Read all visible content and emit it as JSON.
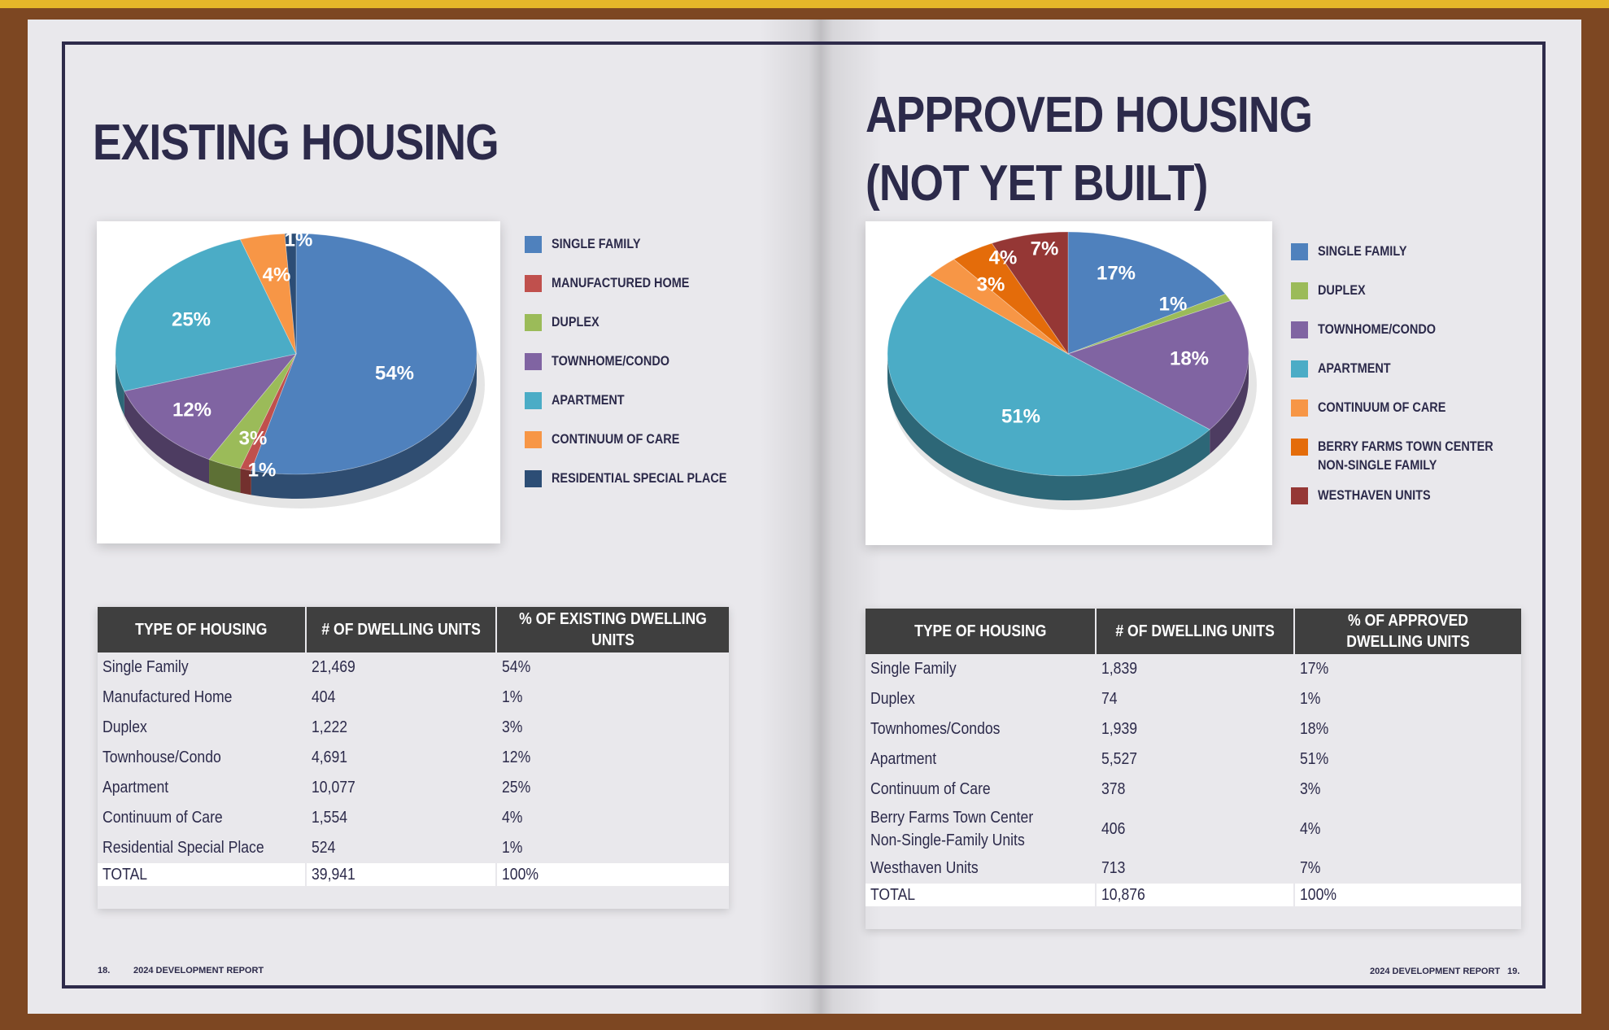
{
  "left": {
    "title": "EXISTING HOUSING",
    "legend": [
      {
        "label": "SINGLE FAMILY",
        "color": "#4f81bd"
      },
      {
        "label": "MANUFACTURED HOME",
        "color": "#c0504d"
      },
      {
        "label": "DUPLEX",
        "color": "#9bbb59"
      },
      {
        "label": "TOWNHOME/CONDO",
        "color": "#8064a2"
      },
      {
        "label": "APARTMENT",
        "color": "#4bacc6"
      },
      {
        "label": "CONTINUUM OF CARE",
        "color": "#f79646"
      },
      {
        "label": "RESIDENTIAL SPECIAL PLACE",
        "color": "#2c4d75"
      }
    ],
    "table": {
      "headers": [
        "TYPE OF HOUSING",
        "# OF DWELLING UNITS",
        "% OF EXISTING DWELLING UNITS"
      ],
      "rows": [
        [
          "Single Family",
          "21,469",
          "54%"
        ],
        [
          "Manufactured Home",
          "404",
          "1%"
        ],
        [
          "Duplex",
          "1,222",
          "3%"
        ],
        [
          "Townhouse/Condo",
          "4,691",
          "12%"
        ],
        [
          "Apartment",
          "10,077",
          "25%"
        ],
        [
          "Continuum of Care",
          "1,554",
          "4%"
        ],
        [
          "Residential Special Place",
          "524",
          "1%"
        ]
      ],
      "total": [
        "TOTAL",
        "39,941",
        "100%"
      ]
    },
    "footer": {
      "page": "18.",
      "report": "2024 DEVELOPMENT REPORT"
    }
  },
  "right": {
    "title_line1": "APPROVED HOUSING",
    "title_line2": "(NOT YET BUILT)",
    "legend": [
      {
        "label": "SINGLE FAMILY",
        "color": "#4f81bd"
      },
      {
        "label": "DUPLEX",
        "color": "#9bbb59"
      },
      {
        "label": "TOWNHOME/CONDO",
        "color": "#8064a2"
      },
      {
        "label": "APARTMENT",
        "color": "#4bacc6"
      },
      {
        "label": "CONTINUUM OF CARE",
        "color": "#f79646"
      },
      {
        "label": "BERRY FARMS TOWN CENTER NON-SINGLE FAMILY",
        "color": "#e46c0a"
      },
      {
        "label": "WESTHAVEN UNITS",
        "color": "#953735"
      }
    ],
    "table": {
      "headers": [
        "TYPE OF HOUSING",
        "# OF DWELLING UNITS",
        "% OF APPROVED DWELLING UNITS"
      ],
      "rows": [
        [
          "Single Family",
          "1,839",
          "17%"
        ],
        [
          "Duplex",
          "74",
          "1%"
        ],
        [
          "Townhomes/Condos",
          "1,939",
          "18%"
        ],
        [
          "Apartment",
          "5,527",
          "51%"
        ],
        [
          "Continuum of Care",
          "378",
          "3%"
        ],
        [
          "Berry Farms Town Center Non-Single-Family Units",
          "406",
          "4%"
        ],
        [
          "Westhaven Units",
          "713",
          "7%"
        ]
      ],
      "total": [
        "TOTAL",
        "10,876",
        "100%"
      ]
    },
    "footer": {
      "page": "19.",
      "report": "2024 DEVELOPMENT REPORT"
    }
  },
  "chart_data": [
    {
      "type": "pie",
      "title": "",
      "categories": [
        "SINGLE FAMILY",
        "MANUFACTURED HOME",
        "DUPLEX",
        "TOWNHOME/CONDO",
        "APARTMENT",
        "CONTINUUM OF CARE",
        "RESIDENTIAL SPECIAL PLACE"
      ],
      "values": [
        54,
        1,
        3,
        12,
        25,
        4,
        1
      ],
      "labels": [
        "54%",
        "1%",
        "3%",
        "12%",
        "25%",
        "4%",
        "1%"
      ],
      "colors": [
        "#4f81bd",
        "#c0504d",
        "#9bbb59",
        "#8064a2",
        "#4bacc6",
        "#f79646",
        "#2c4d75"
      ],
      "legend": "right"
    },
    {
      "type": "pie",
      "title": "",
      "categories": [
        "SINGLE FAMILY",
        "DUPLEX",
        "TOWNHOME/CONDO",
        "APARTMENT",
        "CONTINUUM OF CARE",
        "BERRY FARMS TOWN CENTER NON-SINGLE FAMILY",
        "WESTHAVEN UNITS"
      ],
      "values": [
        17,
        1,
        18,
        51,
        3,
        4,
        7
      ],
      "labels": [
        "17%",
        "1%",
        "18%",
        "51%",
        "3%",
        "4%",
        "7%"
      ],
      "colors": [
        "#4f81bd",
        "#9bbb59",
        "#8064a2",
        "#4bacc6",
        "#f79646",
        "#e46c0a",
        "#953735"
      ],
      "legend": "right"
    }
  ]
}
